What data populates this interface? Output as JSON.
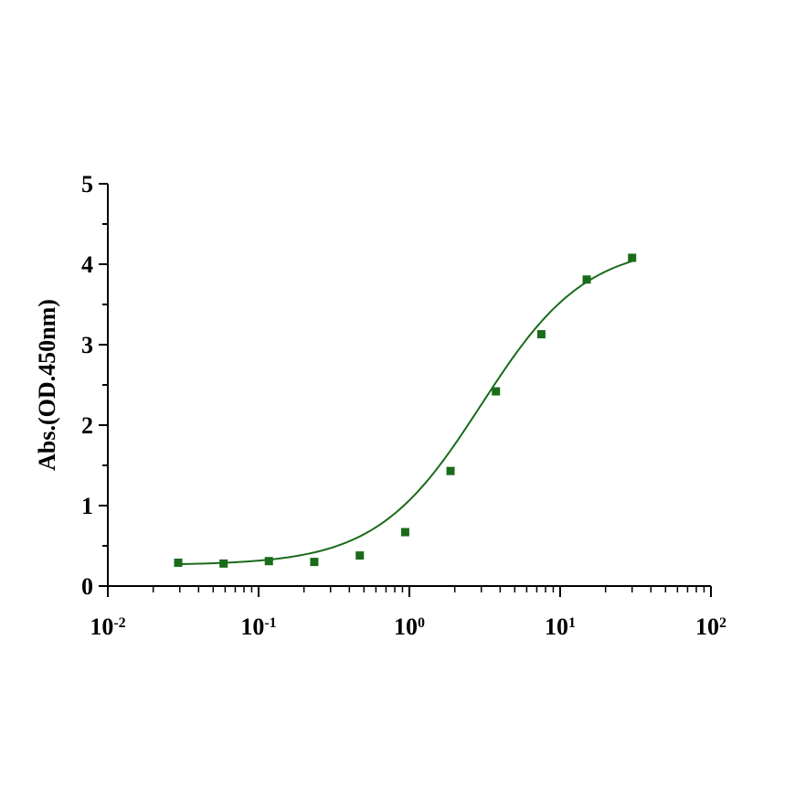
{
  "chart_data": {
    "type": "scatter",
    "title": "",
    "xlabel": "",
    "ylabel": "Abs.(OD.450nm)",
    "x_scale": "log",
    "xlim": [
      0.01,
      100
    ],
    "ylim": [
      0,
      5
    ],
    "grid": false,
    "legend": "none",
    "x_ticks": [
      {
        "base": "10",
        "exp": "-2",
        "value": 0.01
      },
      {
        "base": "10",
        "exp": "-1",
        "value": 0.1
      },
      {
        "base": "10",
        "exp": "0",
        "value": 1
      },
      {
        "base": "10",
        "exp": "1",
        "value": 10
      },
      {
        "base": "10",
        "exp": "2",
        "value": 100
      }
    ],
    "y_ticks": [
      "0",
      "1",
      "2",
      "3",
      "4",
      "5"
    ],
    "series": [
      {
        "marker": "square",
        "color": "#1a6b1a",
        "x": [
          0.0293,
          0.0586,
          0.117,
          0.234,
          0.469,
          0.938,
          1.875,
          3.75,
          7.5,
          15,
          30
        ],
        "y": [
          0.29,
          0.28,
          0.31,
          0.3,
          0.38,
          0.67,
          1.43,
          2.42,
          3.13,
          3.81,
          4.08
        ]
      }
    ],
    "fit": {
      "type": "4PL",
      "color": "#1a6b1a",
      "bottom": 0.26,
      "top": 4.25,
      "ec50": 3.0,
      "hill": 1.25
    }
  }
}
